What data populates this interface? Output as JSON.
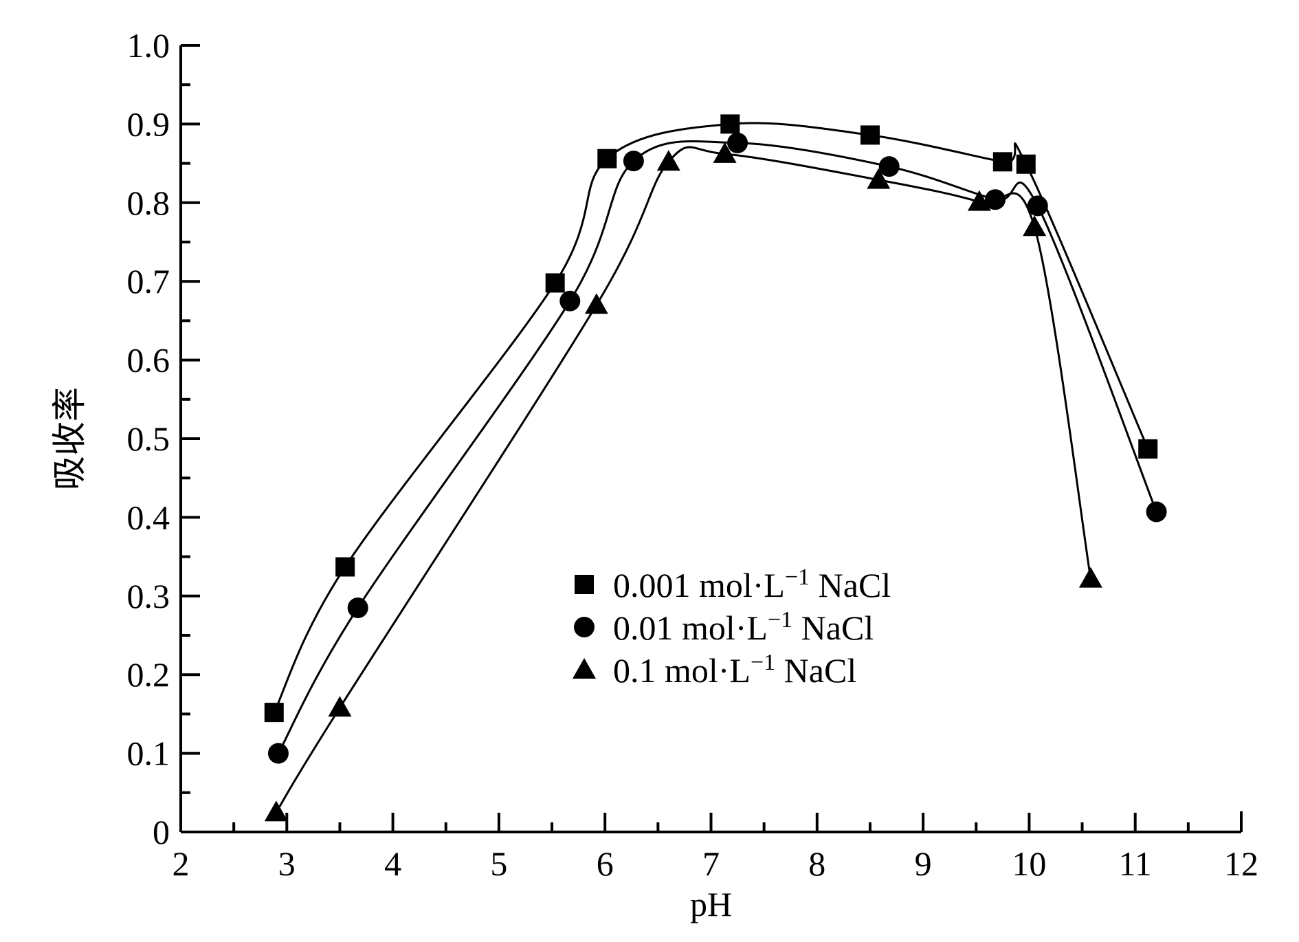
{
  "chart_data": {
    "type": "line",
    "xlabel": "pH",
    "ylabel": "吸收率",
    "xlim": [
      2,
      12
    ],
    "ylim": [
      0,
      1.0
    ],
    "x_ticks": [
      "2",
      "3",
      "4",
      "5",
      "6",
      "7",
      "8",
      "9",
      "10",
      "11",
      "12"
    ],
    "y_ticks": [
      "0",
      "0.1",
      "0.2",
      "0.3",
      "0.4",
      "0.5",
      "0.6",
      "0.7",
      "0.8",
      "0.9",
      "1.0"
    ],
    "grid": false,
    "legend_position": "center",
    "series": [
      {
        "name": "0.001 mol·L⁻¹ NaCl",
        "label_main": "0.001 mol·L",
        "label_sup": "−1",
        "label_end": " NaCl",
        "marker": "square",
        "points": [
          [
            2.88,
            0.152
          ],
          [
            3.55,
            0.337
          ],
          [
            5.53,
            0.698
          ],
          [
            6.02,
            0.856
          ],
          [
            7.18,
            0.9
          ],
          [
            8.5,
            0.886
          ],
          [
            9.75,
            0.852
          ],
          [
            9.97,
            0.849
          ],
          [
            11.12,
            0.487
          ]
        ]
      },
      {
        "name": "0.01 mol·L⁻¹ NaCl",
        "label_main": "0.01 mol·L",
        "label_sup": "−1",
        "label_end": " NaCl",
        "marker": "circle",
        "points": [
          [
            2.92,
            0.1
          ],
          [
            3.67,
            0.285
          ],
          [
            5.67,
            0.675
          ],
          [
            6.27,
            0.853
          ],
          [
            7.25,
            0.876
          ],
          [
            8.68,
            0.846
          ],
          [
            9.68,
            0.804
          ],
          [
            10.08,
            0.796
          ],
          [
            11.2,
            0.407
          ]
        ]
      },
      {
        "name": "0.1 mol·L⁻¹ NaCl",
        "label_main": "0.1 mol·L",
        "label_sup": "−1",
        "label_end": " NaCl",
        "marker": "triangle",
        "points": [
          [
            2.9,
            0.025
          ],
          [
            3.5,
            0.158
          ],
          [
            5.92,
            0.67
          ],
          [
            6.6,
            0.852
          ],
          [
            7.13,
            0.862
          ],
          [
            8.58,
            0.829
          ],
          [
            9.53,
            0.801
          ],
          [
            10.05,
            0.769
          ],
          [
            10.58,
            0.322
          ]
        ]
      }
    ]
  }
}
